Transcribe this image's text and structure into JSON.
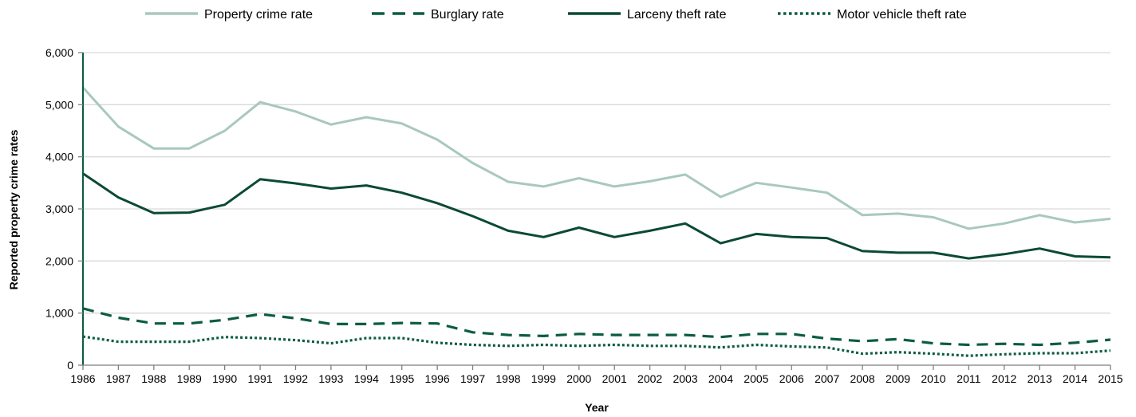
{
  "chart_data": {
    "type": "line",
    "xlabel": "Year",
    "ylabel": "Reported property crime rates",
    "ylim": [
      0,
      6000
    ],
    "yticks": [
      0,
      1000,
      2000,
      3000,
      4000,
      5000,
      6000
    ],
    "ytick_labels": [
      "0",
      "1,000",
      "2,000",
      "3,000",
      "4,000",
      "5,000",
      "6,000"
    ],
    "grid": "horizontal",
    "legend_position": "top",
    "x": [
      "1986",
      "1987",
      "1988",
      "1989",
      "1990",
      "1991",
      "1992",
      "1993",
      "1994",
      "1995",
      "1996",
      "1997",
      "1998",
      "1999",
      "2000",
      "2001",
      "2002",
      "2003",
      "2004",
      "2005",
      "2006",
      "2007",
      "2008",
      "2009",
      "2010",
      "2011",
      "2012",
      "2013",
      "2014",
      "2015"
    ],
    "series": [
      {
        "name": "Property crime rate",
        "color": "#a9c8bd",
        "dash": "solid",
        "values": [
          5330,
          4580,
          4160,
          4160,
          4500,
          5050,
          4870,
          4620,
          4760,
          4640,
          4330,
          3880,
          3520,
          3430,
          3590,
          3430,
          3530,
          3660,
          3230,
          3500,
          3410,
          3310,
          2880,
          2910,
          2840,
          2620,
          2720,
          2880,
          2740,
          2810
        ]
      },
      {
        "name": "Burglary rate",
        "color": "#0b5c42",
        "dash": "dashed",
        "values": [
          1090,
          910,
          800,
          800,
          870,
          980,
          900,
          790,
          790,
          810,
          800,
          630,
          580,
          560,
          600,
          580,
          580,
          580,
          540,
          600,
          600,
          510,
          460,
          500,
          420,
          390,
          410,
          390,
          430,
          490
        ]
      },
      {
        "name": "Larceny theft rate",
        "color": "#0b4a35",
        "dash": "solid",
        "values": [
          3680,
          3220,
          2920,
          2930,
          3080,
          3570,
          3490,
          3390,
          3450,
          3310,
          3110,
          2860,
          2580,
          2460,
          2640,
          2460,
          2580,
          2720,
          2340,
          2520,
          2460,
          2440,
          2190,
          2160,
          2160,
          2050,
          2130,
          2240,
          2090,
          2070
        ]
      },
      {
        "name": "Motor vehicle theft rate",
        "color": "#0b5c42",
        "dash": "dotted",
        "values": [
          550,
          450,
          450,
          450,
          540,
          520,
          480,
          420,
          520,
          520,
          430,
          390,
          370,
          390,
          370,
          390,
          370,
          370,
          340,
          390,
          360,
          340,
          220,
          250,
          220,
          180,
          210,
          230,
          230,
          280
        ]
      }
    ]
  }
}
